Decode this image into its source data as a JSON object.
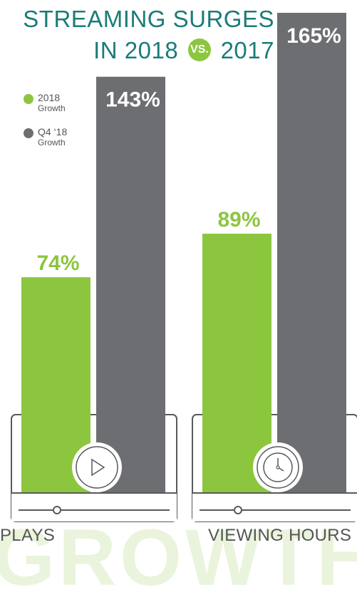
{
  "title": {
    "line1": "STREAMING SURGES",
    "line2_pre": "IN 2018",
    "vs": "VS.",
    "line2_post": "2017"
  },
  "legend": [
    {
      "label": "2018",
      "sub": "Growth",
      "color": "#8cc63f"
    },
    {
      "label": "Q4 ‘18",
      "sub": "Growth",
      "color": "#6d6e71"
    }
  ],
  "categories": [
    "PLAYS",
    "VIEWING HOURS"
  ],
  "watermark": "GROWTH",
  "chart_data": {
    "type": "bar",
    "title": "STREAMING SURGES IN 2018 VS. 2017",
    "categories": [
      "PLAYS",
      "VIEWING HOURS"
    ],
    "series": [
      {
        "name": "2018 Growth",
        "values": [
          74,
          89
        ],
        "labels": [
          "74%",
          "89%"
        ],
        "color": "#8cc63f"
      },
      {
        "name": "Q4 ‘18 Growth",
        "values": [
          143,
          165
        ],
        "labels": [
          "143%",
          "165%"
        ],
        "color": "#6d6e71"
      }
    ],
    "icons": [
      "play-icon",
      "clock-icon"
    ],
    "ylim": [
      0,
      165
    ],
    "grid": false,
    "legend_position": "top-left"
  }
}
